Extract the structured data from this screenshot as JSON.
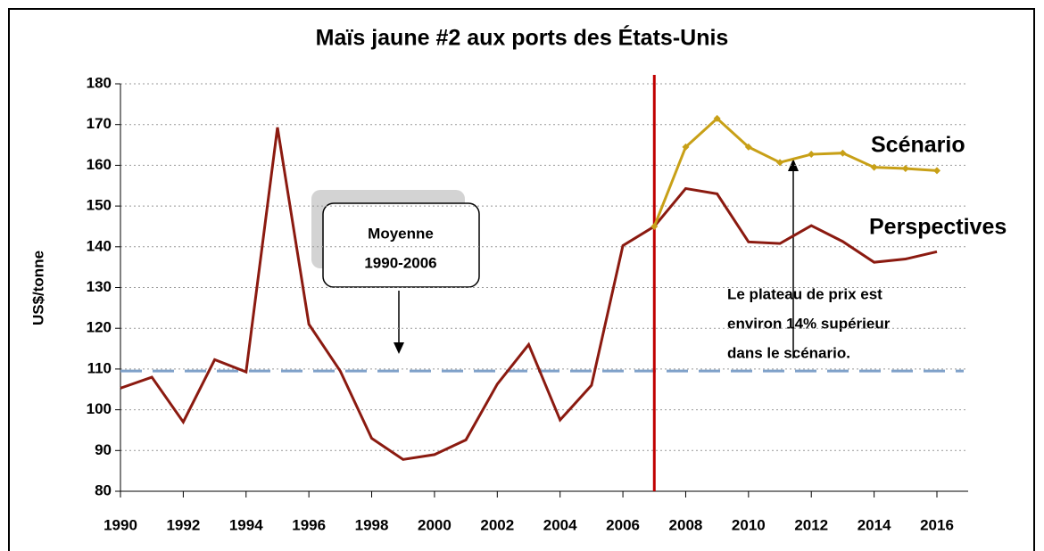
{
  "chart_data": {
    "type": "line",
    "title": "Maïs jaune #2 aux ports des États-Unis",
    "y_label": "US$/tonne",
    "x": [
      1990,
      1991,
      1992,
      1993,
      1994,
      1995,
      1996,
      1997,
      1998,
      1999,
      2000,
      2001,
      2002,
      2003,
      2004,
      2005,
      2006,
      2007,
      2008,
      2009,
      2010,
      2011,
      2012,
      2013,
      2014,
      2015,
      2016
    ],
    "series": [
      {
        "name": "Perspectives",
        "color": "#8b1a10",
        "values": [
          105.3,
          108,
          97,
          112.3,
          109.3,
          169.3,
          121,
          109.5,
          93,
          87.8,
          89,
          92.6,
          106.3,
          116,
          97.5,
          106,
          140.3,
          145,
          154.3,
          153,
          141.2,
          140.8,
          145.2,
          141.3,
          136.2,
          137,
          138.8
        ]
      },
      {
        "name": "Scénario",
        "color": "#c8a017",
        "values": [
          null,
          null,
          null,
          null,
          null,
          null,
          null,
          null,
          null,
          null,
          null,
          null,
          null,
          null,
          null,
          null,
          null,
          145,
          164.5,
          171.5,
          164.5,
          160.7,
          162.7,
          163,
          159.5,
          159.2,
          158.7
        ]
      }
    ],
    "average": 109.5,
    "average_color": "#7fa1c9",
    "divider_x": 2007,
    "divider_color": "#c00000",
    "average_note": [
      "Moyenne",
      "1990-2006"
    ],
    "plateau_note": [
      "Le plateau de prix est",
      "environ 14% supérieur",
      "dans le scénario."
    ],
    "xlim": [
      1990,
      2016
    ],
    "xticks": [
      1990,
      1992,
      1994,
      1996,
      1998,
      2000,
      2002,
      2004,
      2006,
      2008,
      2010,
      2012,
      2014,
      2016
    ],
    "ylim": [
      80,
      180
    ],
    "yticks": [
      80,
      90,
      100,
      110,
      120,
      130,
      140,
      150,
      160,
      170,
      180
    ],
    "grid": true
  }
}
